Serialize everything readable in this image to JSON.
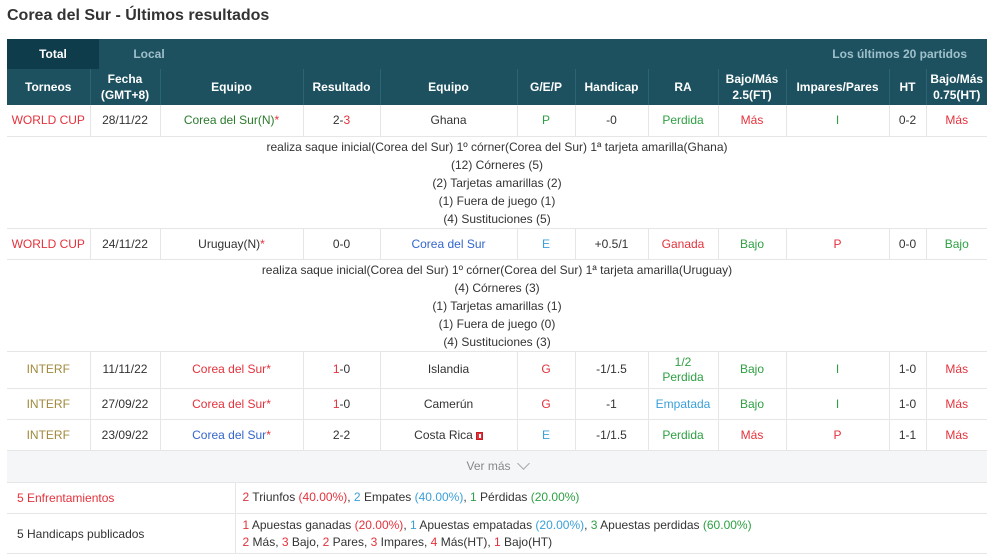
{
  "page": {
    "title": "Corea del Sur - Últimos resultados"
  },
  "tabs": {
    "total": "Total",
    "local": "Local",
    "last_n": "Los últimos 20 partidos"
  },
  "headers": {
    "torneos": "Torneos",
    "fecha_1": "Fecha",
    "fecha_2": "(GMT+8)",
    "equipo_home": "Equipo",
    "resultado": "Resultado",
    "equipo_away": "Equipo",
    "gep": "G/E/P",
    "handicap": "Handicap",
    "ra": "RA",
    "bajomas_1": "Bajo/Más",
    "bajomas_2": "2.5(FT)",
    "impares": "Impares/Pares",
    "ht": "HT",
    "bajomas_ht_1": "Bajo/Más",
    "bajomas_ht_2": "0.75(HT)"
  },
  "matches": [
    {
      "competition": "WORLD CUP",
      "date": "28/11/22",
      "home": "Corea del Sur(N)",
      "home_star": "*",
      "score_home": "2",
      "score_sep": "-",
      "score_away": "3",
      "away": "Ghana",
      "gep": "P",
      "handicap": "-0",
      "ra": "Perdida",
      "ou": "Más",
      "oe": "I",
      "ht": "0-2",
      "ou_ht": "Más",
      "details": [
        "realiza saque inicial(Corea del Sur)  1º córner(Corea del Sur)  1ª tarjeta amarilla(Ghana)",
        "(12) Córneres (5)",
        "(2) Tarjetas amarillas (2)",
        "(1) Fuera de juego (1)",
        "(4) Sustituciones (5)"
      ]
    },
    {
      "competition": "WORLD CUP",
      "date": "24/11/22",
      "home": "Uruguay(N)",
      "home_star": "*",
      "score_home": "0",
      "score_sep": "-",
      "score_away": "0",
      "away": "Corea del Sur",
      "gep": "E",
      "handicap": "+0.5/1",
      "ra": "Ganada",
      "ou": "Bajo",
      "oe": "P",
      "ht": "0-0",
      "ou_ht": "Bajo",
      "details": [
        "realiza saque inicial(Corea del Sur)  1º córner(Corea del Sur)  1ª tarjeta amarilla(Uruguay)",
        "(4) Córneres (3)",
        "(1) Tarjetas amarillas (1)",
        "(1) Fuera de juego (0)",
        "(4) Sustituciones (3)"
      ]
    },
    {
      "competition": "INTERF",
      "date": "11/11/22",
      "home": "Corea del Sur",
      "home_star": "*",
      "score_home": "1",
      "score_sep": "-",
      "score_away": "0",
      "away": "Islandia",
      "gep": "G",
      "handicap": "-1/1.5",
      "ra_1": "1/2",
      "ra_2": "Perdida",
      "ou": "Bajo",
      "oe": "I",
      "ht": "1-0",
      "ou_ht": "Más"
    },
    {
      "competition": "INTERF",
      "date": "27/09/22",
      "home": "Corea del Sur",
      "home_star": "*",
      "score_home": "1",
      "score_sep": "-",
      "score_away": "0",
      "away": "Camerún",
      "gep": "G",
      "handicap": "-1",
      "ra": "Empatada",
      "ou": "Bajo",
      "oe": "I",
      "ht": "1-0",
      "ou_ht": "Más"
    },
    {
      "competition": "INTERF",
      "date": "23/09/22",
      "home": "Corea del Sur",
      "home_star": "*",
      "score_home": "2",
      "score_sep": "-",
      "score_away": "2",
      "away": "Costa Rica",
      "gep": "E",
      "handicap": "-1/1.5",
      "ra": "Perdida",
      "ou": "Más",
      "oe": "P",
      "ht": "1-1",
      "ou_ht": "Más"
    }
  ],
  "more": {
    "label": "Ver más"
  },
  "summary": {
    "enfrentamientos": {
      "label": "5 Enfrentamientos",
      "w_n": "2",
      "w_t": " Triunfos ",
      "w_p": "(40.00%)",
      "s1": ", ",
      "d_n": "2",
      "d_t": " Empates ",
      "d_p": "(40.00%)",
      "s2": ", ",
      "l_n": "1",
      "l_t": " Pérdidas ",
      "l_p": "(20.00%)"
    },
    "handicaps": {
      "label": "5 Handicaps publicados",
      "w_n": "1",
      "w_t": " Apuestas ganadas ",
      "w_p": "(20.00%)",
      "s1": ", ",
      "d_n": "1",
      "d_t": " Apuestas empatadas ",
      "d_p": "(20.00%)",
      "s2": ", ",
      "l_n": "3",
      "l_t": " Apuestas perdidas ",
      "l_p": "(60.00%)",
      "l2": [
        {
          "n": "2",
          "t": " Más, "
        },
        {
          "n": "3",
          "t": " Bajo, "
        },
        {
          "n": "2",
          "t": " Pares, "
        },
        {
          "n": "3",
          "t": " Impares, "
        },
        {
          "n": "4",
          "t": " Más(HT), "
        },
        {
          "n": "1",
          "t": " Bajo(HT)"
        }
      ]
    }
  },
  "colors": {
    "header_bg": "#1d5160",
    "tab_active": "#0f3c4b",
    "win": "#e4323c",
    "draw": "#3aa0d8",
    "loss": "#2ea043"
  }
}
